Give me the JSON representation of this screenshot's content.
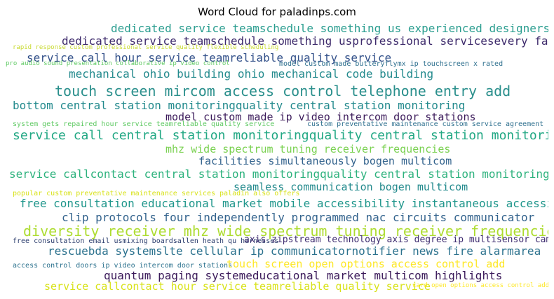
{
  "chart_data": {
    "type": "wordcloud",
    "title": "Word Cloud for paladinps.com",
    "palette": [
      "#440154",
      "#3b528b",
      "#21918c",
      "#5ec962",
      "#fde725"
    ],
    "words": [
      {
        "text": "dedicated service teamschedule something us experienced designersjoin",
        "size": 16,
        "color": "#2a9d8f"
      },
      {
        "text": "dedicated service teamschedule something usprofessional servicesevery facility",
        "size": 16,
        "color": "#3d2a6b"
      },
      {
        "text": "rapid response custom professional service quality flexible scheduling",
        "size": 9,
        "color": "#c8da30"
      },
      {
        "text": "service call hour service teamreliable quality service",
        "size": 16,
        "color": "#33518a"
      },
      {
        "text": "pro audio sound presentation collaborative ip video control",
        "size": 9,
        "color": "#5ec962"
      },
      {
        "text": "model custom made butteryflymx ip touchscreen x rated",
        "size": 10,
        "color": "#2d6f8e"
      },
      {
        "text": "mechanical ohio building ohio mechanical code building",
        "size": 16,
        "color": "#238a8d"
      },
      {
        "text": "touch screen mircom access control telephone entry add",
        "size": 20,
        "color": "#2a8f8c"
      },
      {
        "text": "bottom central station monitoringquality central station monitoring",
        "size": 16,
        "color": "#238a8d"
      },
      {
        "text": "model custom made ip video intercom door stations",
        "size": 15,
        "color": "#3b1a5a"
      },
      {
        "text": "system gets repaired hour service teamreliable quality service",
        "size": 10,
        "color": "#5ec962"
      },
      {
        "text": "custom preventative maintenance custom service agreement",
        "size": 10,
        "color": "#2d6f8e"
      },
      {
        "text": "service call central station monitoringquality central station monitoring",
        "size": 18,
        "color": "#22a884"
      },
      {
        "text": "mhz wide spectrum tuning receiver frequencies",
        "size": 15,
        "color": "#7ad151"
      },
      {
        "text": "facilities simultaneously bogen multicom",
        "size": 15,
        "color": "#33638d"
      },
      {
        "text": "service callcontact central station monitoringquality central station monitoring",
        "size": 16,
        "color": "#2db27d"
      },
      {
        "text": "seamless communication bogen multicom",
        "size": 15,
        "color": "#238a8d"
      },
      {
        "text": "popular custom preventative maintenance services paladin also offers",
        "size": 10,
        "color": "#d8e219"
      },
      {
        "text": "free consultation educational market mobile accessibility instantaneous accessibility",
        "size": 16,
        "color": "#1f968b"
      },
      {
        "text": "clip protocols four independently programmed nac circuits communicator",
        "size": 16,
        "color": "#33638d"
      },
      {
        "text": "diversity receiver mhz wide spectrum tuning receiver frequencies",
        "size": 20,
        "color": "#addc30"
      },
      {
        "text": "free consultation email usmixing boardsallen heath qu harnesses",
        "size": 10,
        "color": "#2c3e6e"
      },
      {
        "text": "axis zipstream technology axis degree ip multisensor camera",
        "size": 13,
        "color": "#3e2c70"
      },
      {
        "text": "rescuebda systemslte cellular ip communicatornotifier news fire alarmarea",
        "size": 16,
        "color": "#2c728e"
      },
      {
        "text": "access control doors ip video intercom door stations",
        "size": 10,
        "color": "#2c728e"
      },
      {
        "text": "touch screen open options access control add",
        "size": 15,
        "color": "#fde725"
      },
      {
        "text": "quantum paging systemeducational market multicom highlights",
        "size": 16,
        "color": "#3b1a5a"
      },
      {
        "text": "service callcontact hour service teamreliable quality service",
        "size": 15,
        "color": "#d8e219"
      },
      {
        "text": "card open options access control add",
        "size": 9,
        "color": "#fde725"
      }
    ]
  }
}
